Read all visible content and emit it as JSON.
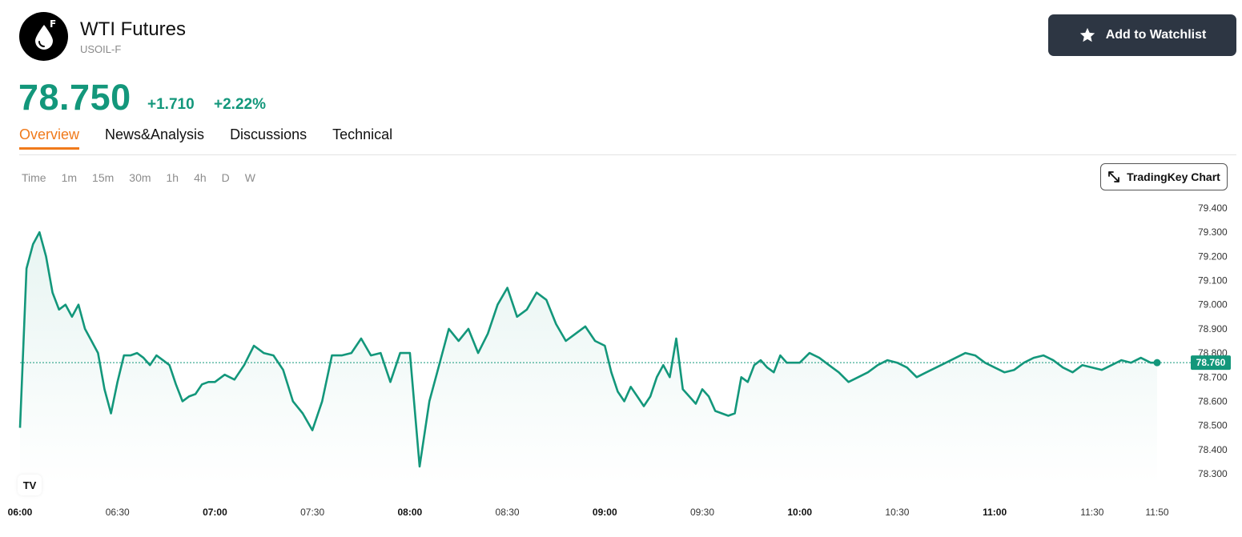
{
  "header": {
    "logo_letter": "F",
    "title": "WTI Futures",
    "symbol": "USOIL-F",
    "watchlist_label": "Add to Watchlist"
  },
  "quote": {
    "price": "78.750",
    "change": "+1.710",
    "change_pct": "+2.22%",
    "color_up": "#13977b"
  },
  "tabs": [
    {
      "label": "Overview",
      "active": true
    },
    {
      "label": "News&Analysis",
      "active": false
    },
    {
      "label": "Discussions",
      "active": false
    },
    {
      "label": "Technical",
      "active": false
    }
  ],
  "intervals": [
    "Time",
    "1m",
    "15m",
    "30m",
    "1h",
    "4h",
    "D",
    "W"
  ],
  "chart_button_label": "TradingKey Chart",
  "tv_logo": "TV",
  "chart_data": {
    "type": "area",
    "series": [
      {
        "x": [
          "06:00",
          "06:02",
          "06:04",
          "06:06",
          "06:08",
          "06:10",
          "06:12",
          "06:14",
          "06:16",
          "06:18",
          "06:20",
          "06:22",
          "06:24",
          "06:26",
          "06:28",
          "06:30",
          "06:32",
          "06:34",
          "06:36",
          "06:38",
          "06:40",
          "06:42",
          "06:44",
          "06:46",
          "06:48",
          "06:50",
          "06:52",
          "06:54",
          "06:56",
          "06:58",
          "07:00",
          "07:03",
          "07:06",
          "07:09",
          "07:12",
          "07:15",
          "07:18",
          "07:21",
          "07:24",
          "07:27",
          "07:30",
          "07:33",
          "07:36",
          "07:39",
          "07:42",
          "07:45",
          "07:48",
          "07:51",
          "07:54",
          "07:57",
          "08:00",
          "08:03",
          "08:06",
          "08:09",
          "08:12",
          "08:15",
          "08:18",
          "08:21",
          "08:24",
          "08:27",
          "08:30",
          "08:33",
          "08:36",
          "08:39",
          "08:42",
          "08:45",
          "08:48",
          "08:51",
          "08:54",
          "08:57",
          "09:00",
          "09:02",
          "09:04",
          "09:06",
          "09:08",
          "09:10",
          "09:12",
          "09:14",
          "09:16",
          "09:18",
          "09:20",
          "09:22",
          "09:24",
          "09:26",
          "09:28",
          "09:30",
          "09:32",
          "09:34",
          "09:36",
          "09:38",
          "09:40",
          "09:42",
          "09:44",
          "09:46",
          "09:48",
          "09:50",
          "09:52",
          "09:54",
          "09:56",
          "09:58",
          "10:00",
          "10:03",
          "10:06",
          "10:09",
          "10:12",
          "10:15",
          "10:18",
          "10:21",
          "10:24",
          "10:27",
          "10:30",
          "10:33",
          "10:36",
          "10:39",
          "10:42",
          "10:45",
          "10:48",
          "10:51",
          "10:54",
          "10:57",
          "11:00",
          "11:03",
          "11:06",
          "11:09",
          "11:12",
          "11:15",
          "11:18",
          "11:21",
          "11:24",
          "11:27",
          "11:30",
          "11:33",
          "11:36",
          "11:39",
          "11:42",
          "11:45",
          "11:48",
          "11:50"
        ],
        "values": [
          78.49,
          79.15,
          79.25,
          79.3,
          79.2,
          79.05,
          78.98,
          79.0,
          78.95,
          79.0,
          78.9,
          78.85,
          78.8,
          78.65,
          78.55,
          78.68,
          78.79,
          78.79,
          78.8,
          78.78,
          78.75,
          78.79,
          78.77,
          78.75,
          78.67,
          78.6,
          78.62,
          78.63,
          78.67,
          78.68,
          78.68,
          78.71,
          78.69,
          78.75,
          78.83,
          78.8,
          78.79,
          78.73,
          78.6,
          78.55,
          78.48,
          78.6,
          78.79,
          78.79,
          78.8,
          78.86,
          78.79,
          78.8,
          78.68,
          78.8,
          78.8,
          78.33,
          78.6,
          78.75,
          78.9,
          78.85,
          78.9,
          78.8,
          78.88,
          79.0,
          79.07,
          78.95,
          78.98,
          79.05,
          79.02,
          78.92,
          78.85,
          78.88,
          78.91,
          78.85,
          78.83,
          78.72,
          78.64,
          78.6,
          78.66,
          78.62,
          78.58,
          78.62,
          78.7,
          78.75,
          78.7,
          78.86,
          78.65,
          78.62,
          78.59,
          78.65,
          78.62,
          78.56,
          78.55,
          78.54,
          78.55,
          78.7,
          78.68,
          78.75,
          78.77,
          78.74,
          78.72,
          78.79,
          78.76,
          78.76,
          78.76,
          78.8,
          78.78,
          78.75,
          78.72,
          78.68,
          78.7,
          78.72,
          78.75,
          78.77,
          78.76,
          78.74,
          78.7,
          78.72,
          78.74,
          78.76,
          78.78,
          78.8,
          78.79,
          78.76,
          78.74,
          78.72,
          78.73,
          78.76,
          78.78,
          78.79,
          78.77,
          78.74,
          78.72,
          78.75,
          78.74,
          78.73,
          78.75,
          78.77,
          78.76,
          78.78,
          78.76,
          78.76
        ],
        "last": 78.76
      }
    ],
    "x_ticks": [
      "06:00",
      "06:30",
      "07:00",
      "07:30",
      "08:00",
      "08:30",
      "09:00",
      "09:30",
      "10:00",
      "10:30",
      "11:00",
      "11:30",
      "11:50"
    ],
    "x_ticks_bold": [
      "06:00",
      "07:00",
      "08:00",
      "09:00",
      "10:00",
      "11:00"
    ],
    "y_ticks": [
      "79.400",
      "79.300",
      "79.200",
      "79.100",
      "79.000",
      "78.900",
      "78.800",
      "78.700",
      "78.600",
      "78.500",
      "78.400",
      "78.300"
    ],
    "last_price_label": "78.760",
    "ylim": [
      78.28,
      79.42
    ],
    "line_color": "#13977b"
  }
}
